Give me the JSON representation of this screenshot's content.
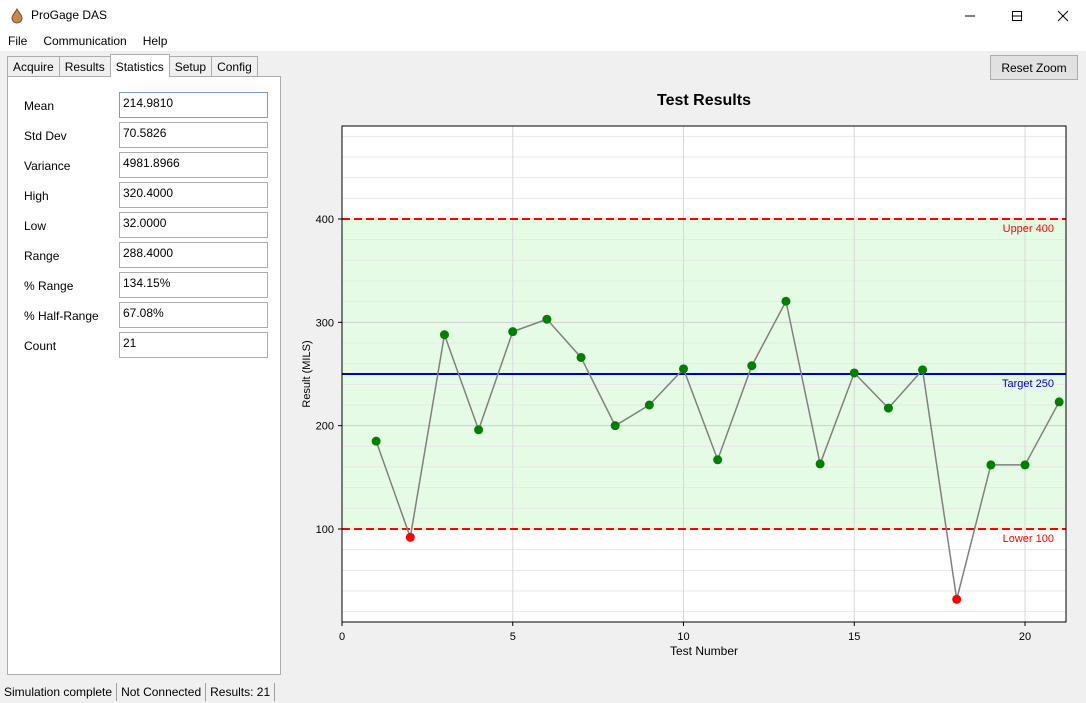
{
  "window": {
    "title": "ProGage DAS",
    "minimize_icon": "minimize-icon",
    "maximize_icon": "maximize-icon",
    "close_icon": "close-icon"
  },
  "menu": [
    "File",
    "Communication",
    "Help"
  ],
  "tabs": [
    {
      "label": "Acquire",
      "active": false
    },
    {
      "label": "Results",
      "active": false
    },
    {
      "label": "Statistics",
      "active": true
    },
    {
      "label": "Setup",
      "active": false
    },
    {
      "label": "Config",
      "active": false
    }
  ],
  "statistics": [
    {
      "label": "Mean",
      "value": "214.9810"
    },
    {
      "label": "Std Dev",
      "value": "70.5826"
    },
    {
      "label": "Variance",
      "value": "4981.8966"
    },
    {
      "label": "High",
      "value": "320.4000"
    },
    {
      "label": "Low",
      "value": "32.0000"
    },
    {
      "label": "Range",
      "value": "288.4000"
    },
    {
      "label": "% Range",
      "value": "134.15%"
    },
    {
      "label": "% Half-Range",
      "value": "67.08%"
    },
    {
      "label": "Count",
      "value": "21"
    }
  ],
  "toolbar": {
    "reset_zoom_label": "Reset Zoom"
  },
  "chart_data": {
    "type": "line",
    "title": "Test Results",
    "xlabel": "Test Number",
    "ylabel": "Result (MILS)",
    "xlim": [
      0,
      21.2
    ],
    "ylim": [
      10,
      490
    ],
    "xticks": [
      0,
      5,
      10,
      15,
      20
    ],
    "yticks": [
      100,
      200,
      300,
      400
    ],
    "grid": true,
    "x": [
      1,
      2,
      3,
      4,
      5,
      6,
      7,
      8,
      9,
      10,
      11,
      12,
      13,
      14,
      15,
      16,
      17,
      18,
      19,
      20,
      21
    ],
    "y": [
      185,
      92,
      288,
      196,
      291,
      303,
      266,
      200,
      220,
      255,
      167,
      258,
      320.4,
      163,
      251,
      217,
      254,
      32,
      162,
      162,
      223
    ],
    "in_spec_band": [
      100,
      400
    ],
    "reference_lines": [
      {
        "label": "Upper 400",
        "value": 400,
        "color": "#ff0000",
        "style": "dashed"
      },
      {
        "label": "Target 250",
        "value": 250,
        "color": "#0000cd",
        "style": "solid"
      },
      {
        "label": "Lower 100",
        "value": 100,
        "color": "#ff0000",
        "style": "dashed"
      }
    ],
    "colors": {
      "in_spec_point": "#008000",
      "out_of_spec_point": "#ff0000",
      "line": "#808080",
      "band": "#e6fbe6"
    }
  },
  "status": [
    "Simulation complete",
    "Not Connected",
    "Results: 21"
  ]
}
